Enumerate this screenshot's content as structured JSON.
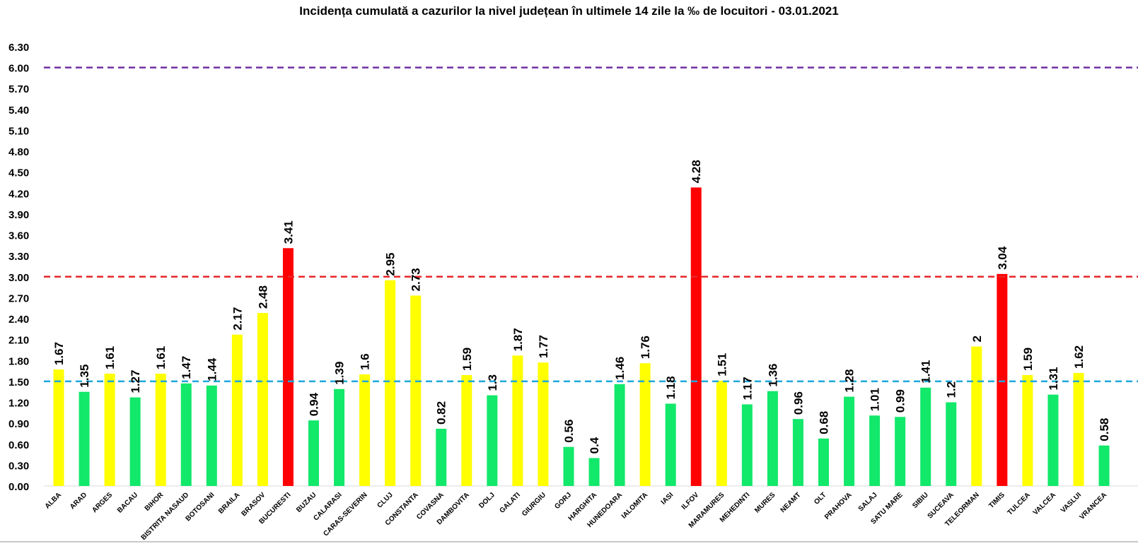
{
  "chart_data": {
    "type": "bar",
    "title": "Incidența cumulată a cazurilor la nivel județean în ultimele 14 zile la ‰ de locuitori - 03.01.2021",
    "xlabel": "",
    "ylabel": "",
    "ylim": [
      0,
      6.3
    ],
    "yticks": [
      "0.00",
      "0.30",
      "0.60",
      "0.90",
      "1.20",
      "1.50",
      "1.80",
      "2.10",
      "2.40",
      "2.70",
      "3.00",
      "3.30",
      "3.60",
      "3.90",
      "4.20",
      "4.50",
      "4.80",
      "5.10",
      "5.40",
      "5.70",
      "6.00",
      "6.30"
    ],
    "grid": false,
    "legend": "none",
    "categories": [
      "ALBA",
      "ARAD",
      "ARGES",
      "BACAU",
      "BIHOR",
      "BISTRITA NASAUD",
      "BOTOSANI",
      "BRAILA",
      "BRASOV",
      "BUCURESTI",
      "BUZAU",
      "CALARASI",
      "CARAS-SEVERIN",
      "CLUJ",
      "CONSTANTA",
      "COVASNA",
      "DAMBOVITA",
      "DOLJ",
      "GALATI",
      "GIURGIU",
      "GORJ",
      "HARGHITA",
      "HUNEDOARA",
      "IALOMITA",
      "IASI",
      "ILFOV",
      "MARAMURES",
      "MEHEDINTI",
      "MURES",
      "NEAMT",
      "OLT",
      "PRAHOVA",
      "SALAJ",
      "SATU MARE",
      "SIBIU",
      "SUCEAVA",
      "TELEORMAN",
      "TIMIS",
      "TULCEA",
      "VALCEA",
      "VASLUI",
      "VRANCEA"
    ],
    "values": [
      1.67,
      1.35,
      1.61,
      1.27,
      1.61,
      1.47,
      1.44,
      2.17,
      2.48,
      3.41,
      0.94,
      1.39,
      1.6,
      2.95,
      2.73,
      0.82,
      1.59,
      1.3,
      1.87,
      1.77,
      0.56,
      0.4,
      1.46,
      1.76,
      1.18,
      4.28,
      1.51,
      1.17,
      1.36,
      0.96,
      0.68,
      1.28,
      1.01,
      0.99,
      1.41,
      1.2,
      2,
      3.04,
      1.59,
      1.31,
      1.62,
      0.58
    ],
    "data_labels": [
      "1.67",
      "1.35",
      "1.61",
      "1.27",
      "1.61",
      "1.47",
      "1.44",
      "2.17",
      "2.48",
      "3.41",
      "0.94",
      "1.39",
      "1.6",
      "2.95",
      "2.73",
      "0.82",
      "1.59",
      "1.3",
      "1.87",
      "1.77",
      "0.56",
      "0.4",
      "1.46",
      "1.76",
      "1.18",
      "4.28",
      "1.51",
      "1.17",
      "1.36",
      "0.96",
      "0.68",
      "1.28",
      "1.01",
      "0.99",
      "1.41",
      "1.2",
      "2",
      "3.04",
      "1.59",
      "1.31",
      "1.62",
      "0.58"
    ],
    "thresholds": [
      {
        "value": 1.5,
        "color": "#1ea7dc",
        "style": "dashed"
      },
      {
        "value": 3.0,
        "color": "#e8262a",
        "style": "dashed"
      },
      {
        "value": 6.0,
        "color": "#7030a0",
        "style": "dashed"
      }
    ],
    "colors": {
      "green": "#12e86a",
      "yellow": "#ffff00",
      "red": "#ff0000"
    },
    "color_rule": "value < 1.5 green; 1.5 <= value < 3.0 yellow; value >= 3.0 red"
  }
}
